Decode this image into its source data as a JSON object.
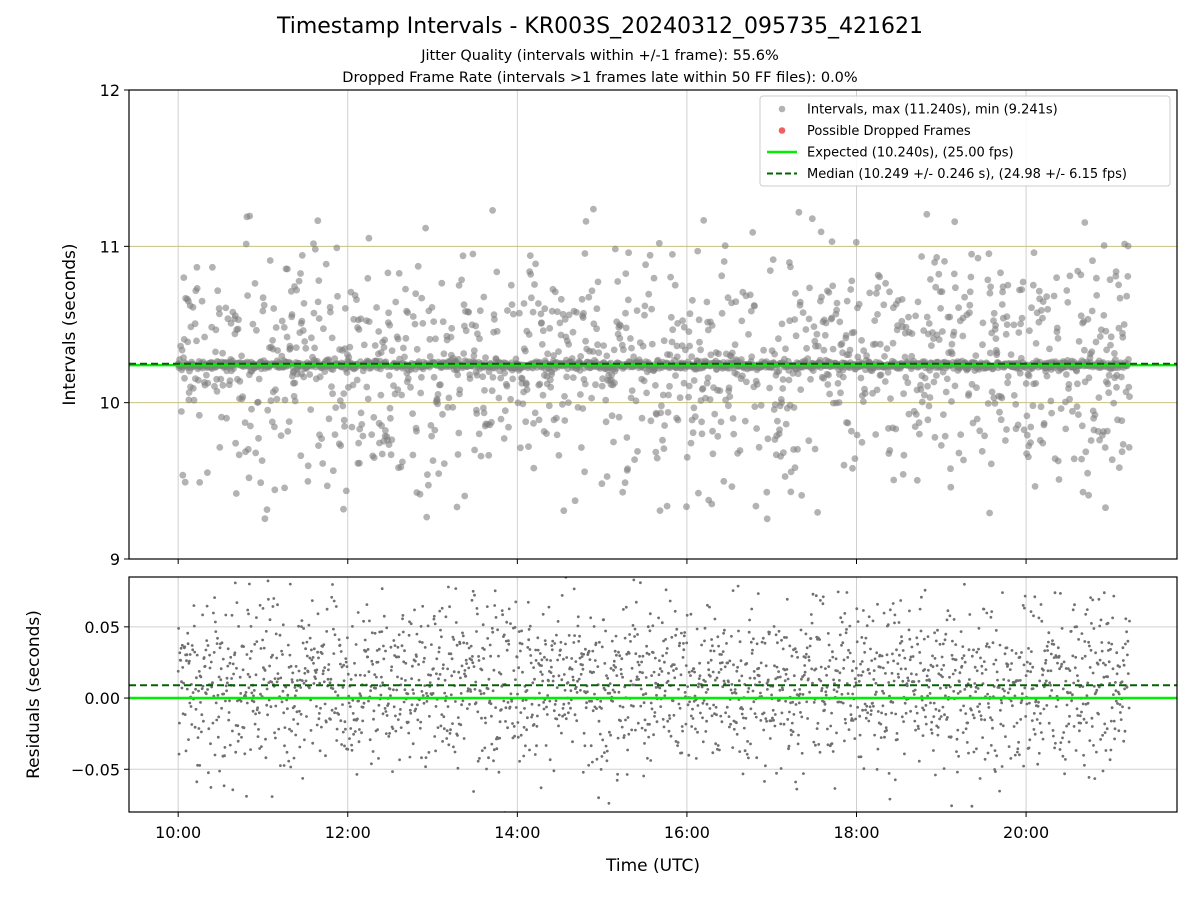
{
  "figure": {
    "title": "Timestamp Intervals - KR003S_20240312_095735_421621",
    "subtitle_1": "Jitter Quality (intervals within +/-1 frame): 55.6%",
    "subtitle_2": "Dropped Frame Rate (intervals >1 frames late within 50 FF files): 0.0%"
  },
  "colors": {
    "intervals": "#808080",
    "dropped": "#f06060",
    "expected": "#00ee00",
    "median": "#006400",
    "tolerance": "#c8c080",
    "grid": "#d0d0d0"
  },
  "chart_data": [
    {
      "type": "scatter",
      "panel": "intervals",
      "ylabel": "Intervals (seconds)",
      "xlabel": "",
      "x_range_hours": [
        9.42,
        21.78
      ],
      "ylim": [
        9,
        12
      ],
      "yticks": [
        {
          "v": 9,
          "label": "9"
        },
        {
          "v": 10,
          "label": "10"
        },
        {
          "v": 11,
          "label": "11"
        },
        {
          "v": 12,
          "label": "12"
        }
      ],
      "xticks": [
        {
          "v": 10,
          "label": "10:00"
        },
        {
          "v": 12,
          "label": "12:00"
        },
        {
          "v": 14,
          "label": "14:00"
        },
        {
          "v": 16,
          "label": "16:00"
        },
        {
          "v": 18,
          "label": "18:00"
        },
        {
          "v": 20,
          "label": "20:00"
        }
      ],
      "grid": "vertical",
      "data_time_span": [
        "10:00",
        "21:13"
      ],
      "expected_interval": 10.24,
      "median_interval": 10.249,
      "tolerance_lines": [
        10.0,
        11.0
      ],
      "max_interval": 11.24,
      "min_interval": 9.241,
      "jitter_within_tolerance": 0.556,
      "dropped_frames": [],
      "series": [
        {
          "name": "Intervals, max (11.240s), min (9.241s)",
          "marker": "point"
        },
        {
          "name": "Possible Dropped Frames",
          "marker": "point"
        },
        {
          "name": "Expected (10.240s), (25.00 fps)",
          "marker": "solid-line"
        },
        {
          "name": "Median (10.249 +/- 0.246 s), (24.98 +/- 6.15 fps)",
          "marker": "dashed-line"
        }
      ],
      "legend": "top-right"
    },
    {
      "type": "scatter",
      "panel": "residuals",
      "ylabel": "Residuals (seconds)",
      "xlabel": "Time (UTC)",
      "x_range_hours": [
        9.42,
        21.78
      ],
      "ylim": [
        -0.08,
        0.085
      ],
      "yticks": [
        {
          "v": -0.05,
          "label": "−0.05"
        },
        {
          "v": 0.0,
          "label": "0.00"
        },
        {
          "v": 0.05,
          "label": "0.05"
        }
      ],
      "xticks": [
        {
          "v": 10,
          "label": "10:00"
        },
        {
          "v": 12,
          "label": "12:00"
        },
        {
          "v": 14,
          "label": "14:00"
        },
        {
          "v": 16,
          "label": "16:00"
        },
        {
          "v": 18,
          "label": "18:00"
        },
        {
          "v": 20,
          "label": "20:00"
        }
      ],
      "grid": "both",
      "expected_residual": 0.0,
      "median_residual": 0.009,
      "residual_spread": 0.03
    }
  ]
}
